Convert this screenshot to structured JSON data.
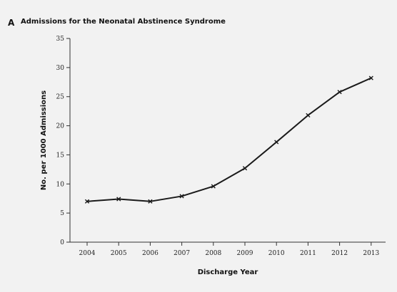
{
  "panel": {
    "letter": "A",
    "title": "Admissions for the Neonatal Abstinence Syndrome"
  },
  "chart_data": {
    "type": "line",
    "title": "Admissions for the Neonatal Abstinence Syndrome",
    "xlabel": "Discharge Year",
    "ylabel": "No. per 1000 Admissions",
    "x": [
      "2004",
      "2005",
      "2006",
      "2007",
      "2008",
      "2009",
      "2010",
      "2011",
      "2012",
      "2013"
    ],
    "series": [
      {
        "values": [
          7.0,
          7.4,
          7.0,
          7.9,
          9.6,
          12.7,
          17.2,
          21.8,
          25.8,
          28.2
        ]
      }
    ],
    "ylim": [
      0,
      35
    ],
    "yticks": [
      0,
      5,
      10,
      15,
      20,
      25,
      30,
      35
    ],
    "grid": false,
    "colors": {
      "line": "#1a1a1a",
      "axis": "#333333"
    }
  }
}
